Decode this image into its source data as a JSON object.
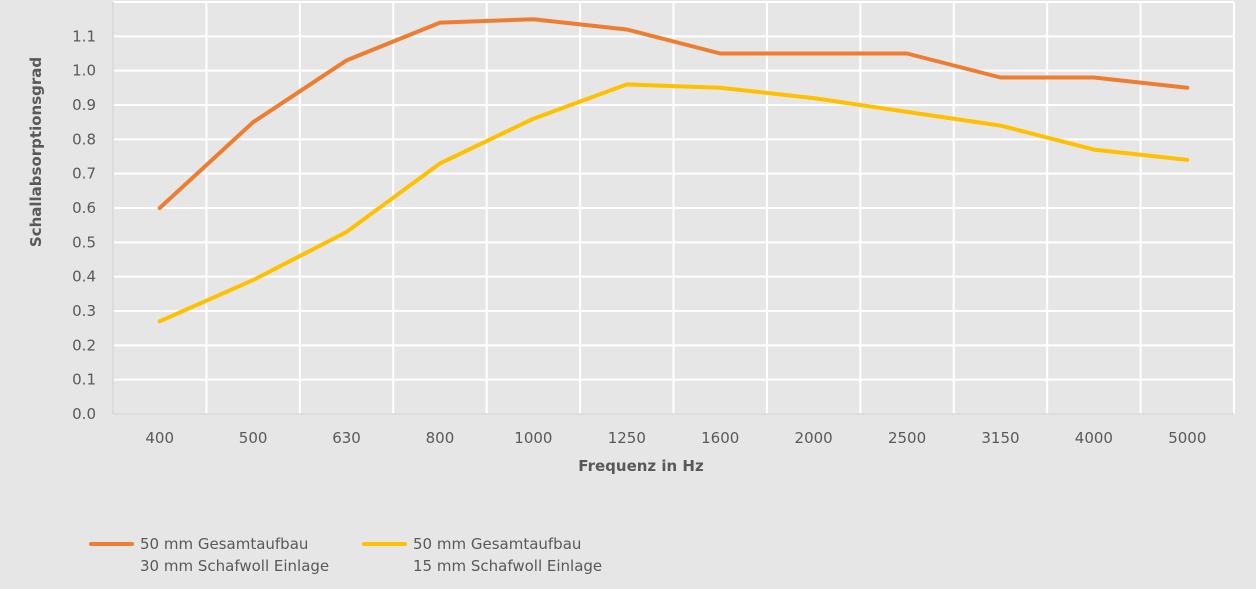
{
  "chart_data": {
    "type": "line",
    "title": "",
    "xlabel": "Frequenz in Hz",
    "ylabel": "Schallabsorptionsgrad",
    "categories": [
      "400",
      "500",
      "630",
      "800",
      "1000",
      "1250",
      "1600",
      "2000",
      "2500",
      "3150",
      "4000",
      "5000"
    ],
    "ylim": [
      0,
      1.1
    ],
    "yticks": [
      "0.0",
      "0.1",
      "0.2",
      "0.3",
      "0.4",
      "0.5",
      "0.6",
      "0.7",
      "0.8",
      "0.9",
      "1.0",
      "1.1"
    ],
    "grid": true,
    "legend_position": "bottom-left",
    "series": [
      {
        "name_line1": "50 mm Gesamtaufbau",
        "name_line2": "30 mm Schafwoll Einlage",
        "color": "#ed7d31",
        "values": [
          0.6,
          0.85,
          1.03,
          1.14,
          1.15,
          1.12,
          1.05,
          1.05,
          1.05,
          0.98,
          0.98,
          0.95
        ]
      },
      {
        "name_line1": "50 mm Gesamtaufbau",
        "name_line2": "15 mm Schafwoll Einlage",
        "color": "#ffc000",
        "values": [
          0.27,
          0.39,
          0.53,
          0.73,
          0.86,
          0.96,
          0.95,
          0.92,
          0.88,
          0.84,
          0.77,
          0.74
        ]
      }
    ]
  }
}
